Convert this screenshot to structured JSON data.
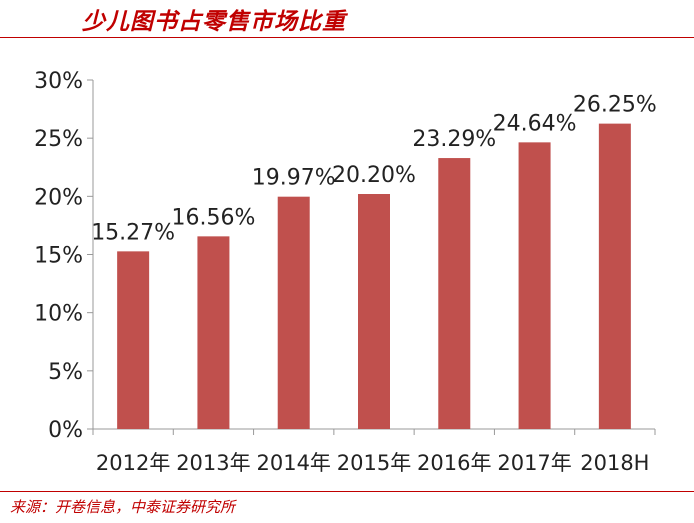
{
  "header": {
    "title": "少儿图书占零售市场比重"
  },
  "footer": {
    "source": "来源：开卷信息，中泰证券研究所"
  },
  "colors": {
    "bar": "#c0504d",
    "accent": "#c00000",
    "axis": "#999999"
  },
  "chart_data": {
    "type": "bar",
    "title": "少儿图书占零售市场比重",
    "xlabel": "",
    "ylabel": "",
    "categories": [
      "2012年",
      "2013年",
      "2014年",
      "2015年",
      "2016年",
      "2017年",
      "2018H"
    ],
    "values": [
      15.27,
      16.56,
      19.97,
      20.2,
      23.29,
      24.64,
      26.25
    ],
    "data_labels": [
      "15.27%",
      "16.56%",
      "19.97%",
      "20.20%",
      "23.29%",
      "24.64%",
      "26.25%"
    ],
    "ylim": [
      0,
      30
    ],
    "yticks": [
      0,
      5,
      10,
      15,
      20,
      25,
      30
    ],
    "ytick_labels": [
      "0%",
      "5%",
      "10%",
      "15%",
      "20%",
      "25%",
      "30%"
    ],
    "grid": false,
    "legend": "none"
  }
}
